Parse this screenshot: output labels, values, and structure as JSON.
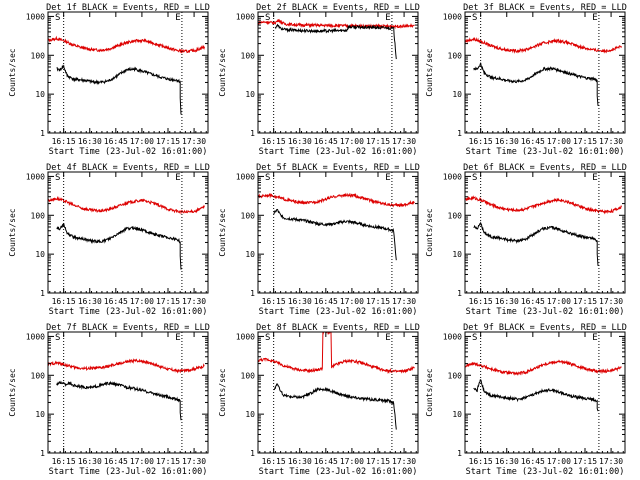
{
  "colors": {
    "events": "#000000",
    "lld": "#dd0000",
    "axis": "#000000",
    "background": "#ffffff"
  },
  "common": {
    "xlabel": "Start Time (23-Jul-02 16:01:00)",
    "ylabel": "Counts/sec",
    "xticks": [
      {
        "t": 14,
        "label": "16:15"
      },
      {
        "t": 29,
        "label": "16:30"
      },
      {
        "t": 44,
        "label": "16:45"
      },
      {
        "t": 59,
        "label": "17:00"
      },
      {
        "t": 74,
        "label": "17:15"
      },
      {
        "t": 89,
        "label": "17:30"
      }
    ],
    "yticks": [
      {
        "v": 1,
        "label": "1"
      },
      {
        "v": 10,
        "label": "10"
      },
      {
        "v": 100,
        "label": "100"
      },
      {
        "v": 1000,
        "label": "1000"
      }
    ],
    "xlim": [
      5,
      97
    ],
    "ylim": [
      1,
      1300
    ],
    "marker_start": "S",
    "marker_end": "E",
    "marker_times": [
      14,
      82
    ]
  },
  "chart_data": [
    {
      "type": "line",
      "title": "Det 1f BLACK = Events, RED = LLD",
      "xlabel": "Start Time (23-Jul-02 16:01:00)",
      "ylabel": "Counts/sec",
      "ylim": [
        1,
        1300
      ],
      "series": [
        {
          "name": "LLD",
          "color": "#dd0000",
          "x": [
            5,
            10,
            15,
            20,
            25,
            30,
            35,
            40,
            45,
            50,
            55,
            60,
            65,
            70,
            75,
            80,
            85,
            90,
            95
          ],
          "values": [
            240,
            270,
            230,
            180,
            155,
            140,
            135,
            145,
            175,
            210,
            235,
            240,
            210,
            175,
            150,
            130,
            125,
            135,
            165
          ]
        },
        {
          "name": "Events",
          "color": "#000000",
          "x": [
            10,
            12,
            13,
            14,
            16,
            20,
            25,
            30,
            35,
            40,
            45,
            50,
            55,
            60,
            65,
            70,
            75,
            79,
            81,
            81,
            81.5
          ],
          "values": [
            45,
            42,
            48,
            52,
            30,
            24,
            23,
            21,
            20,
            22,
            30,
            42,
            44,
            38,
            32,
            27,
            24,
            23,
            21,
            8,
            3
          ]
        }
      ]
    },
    {
      "type": "line",
      "title": "Det 2f BLACK = Events, RED = LLD",
      "xlabel": "Start Time (23-Jul-02 16:01:00)",
      "ylabel": "Counts/sec",
      "ylim": [
        1,
        1300
      ],
      "series": [
        {
          "name": "LLD",
          "color": "#dd0000",
          "x": [
            5,
            10,
            12,
            15,
            17,
            20,
            30,
            40,
            50,
            60,
            70,
            80,
            90,
            95
          ],
          "values": [
            700,
            720,
            690,
            700,
            800,
            640,
            600,
            590,
            580,
            570,
            560,
            560,
            560,
            580
          ]
        },
        {
          "name": "Events",
          "color": "#000000",
          "x": [
            15,
            16,
            18,
            20,
            30,
            40,
            50,
            56,
            57,
            60,
            70,
            80,
            83,
            84,
            84.5
          ],
          "values": [
            520,
            600,
            490,
            460,
            430,
            420,
            430,
            440,
            540,
            530,
            520,
            510,
            480,
            140,
            80
          ]
        }
      ]
    },
    {
      "type": "line",
      "title": "Det 3f BLACK = Events, RED = LLD",
      "xlabel": "Start Time (23-Jul-02 16:01:00)",
      "ylabel": "Counts/sec",
      "ylim": [
        1,
        1300
      ],
      "series": [
        {
          "name": "LLD",
          "color": "#dd0000",
          "x": [
            5,
            10,
            15,
            20,
            25,
            30,
            35,
            40,
            45,
            50,
            55,
            60,
            65,
            70,
            75,
            80,
            85,
            90,
            95
          ],
          "values": [
            230,
            260,
            220,
            175,
            150,
            135,
            130,
            140,
            170,
            205,
            230,
            235,
            205,
            170,
            150,
            135,
            130,
            140,
            170
          ]
        },
        {
          "name": "Events",
          "color": "#000000",
          "x": [
            10,
            12,
            13,
            14,
            16,
            20,
            25,
            30,
            35,
            40,
            45,
            50,
            55,
            60,
            65,
            70,
            75,
            79,
            81,
            81,
            81.5
          ],
          "values": [
            46,
            44,
            52,
            60,
            35,
            27,
            25,
            22,
            21,
            23,
            32,
            44,
            46,
            40,
            34,
            29,
            26,
            25,
            22,
            9,
            5
          ]
        }
      ]
    },
    {
      "type": "line",
      "title": "Det 4f BLACK = Events, RED = LLD",
      "xlabel": "Start Time (23-Jul-02 16:01:00)",
      "ylabel": "Counts/sec",
      "ylim": [
        1,
        1300
      ],
      "series": [
        {
          "name": "LLD",
          "color": "#dd0000",
          "x": [
            5,
            10,
            15,
            20,
            25,
            30,
            35,
            40,
            45,
            50,
            55,
            60,
            65,
            70,
            75,
            80,
            85,
            90,
            95
          ],
          "values": [
            240,
            270,
            230,
            180,
            150,
            135,
            130,
            140,
            170,
            205,
            230,
            240,
            210,
            170,
            140,
            125,
            120,
            130,
            165
          ]
        },
        {
          "name": "Events",
          "color": "#000000",
          "x": [
            10,
            12,
            13,
            14,
            16,
            20,
            25,
            30,
            35,
            40,
            45,
            50,
            55,
            60,
            65,
            70,
            75,
            79,
            81,
            81,
            81.5
          ],
          "values": [
            48,
            45,
            52,
            60,
            34,
            27,
            25,
            22,
            21,
            24,
            33,
            45,
            47,
            41,
            34,
            29,
            26,
            24,
            21,
            9,
            4
          ]
        }
      ]
    },
    {
      "type": "line",
      "title": "Det 5f BLACK = Events, RED = LLD",
      "xlabel": "Start Time (23-Jul-02 16:01:00)",
      "ylabel": "Counts/sec",
      "ylim": [
        1,
        1300
      ],
      "series": [
        {
          "name": "LLD",
          "color": "#dd0000",
          "x": [
            5,
            10,
            14,
            15,
            20,
            25,
            30,
            35,
            40,
            45,
            50,
            55,
            60,
            65,
            70,
            75,
            80,
            85,
            90,
            95
          ],
          "values": [
            300,
            330,
            320,
            300,
            260,
            230,
            210,
            210,
            230,
            270,
            310,
            330,
            320,
            280,
            240,
            210,
            190,
            180,
            190,
            220
          ]
        },
        {
          "name": "Events",
          "color": "#000000",
          "x": [
            14,
            16,
            18,
            20,
            25,
            30,
            35,
            40,
            45,
            50,
            55,
            60,
            65,
            70,
            75,
            80,
            83,
            84,
            84.5
          ],
          "values": [
            110,
            140,
            100,
            85,
            80,
            75,
            68,
            60,
            58,
            62,
            70,
            66,
            58,
            52,
            48,
            44,
            40,
            12,
            7
          ]
        }
      ]
    },
    {
      "type": "line",
      "title": "Det 6f BLACK = Events, RED = LLD",
      "xlabel": "Start Time (23-Jul-02 16:01:00)",
      "ylabel": "Counts/sec",
      "ylim": [
        1,
        1300
      ],
      "series": [
        {
          "name": "LLD",
          "color": "#dd0000",
          "x": [
            5,
            10,
            15,
            20,
            25,
            30,
            35,
            40,
            45,
            50,
            55,
            60,
            65,
            70,
            75,
            80,
            85,
            90,
            95
          ],
          "values": [
            250,
            280,
            240,
            185,
            155,
            140,
            135,
            145,
            175,
            210,
            240,
            250,
            215,
            175,
            145,
            130,
            125,
            130,
            165
          ]
        },
        {
          "name": "Events",
          "color": "#000000",
          "x": [
            10,
            12,
            13,
            14,
            16,
            20,
            25,
            30,
            35,
            40,
            45,
            50,
            55,
            60,
            65,
            70,
            75,
            79,
            81,
            81,
            81.5
          ],
          "values": [
            50,
            46,
            54,
            62,
            36,
            28,
            26,
            23,
            22,
            24,
            34,
            46,
            48,
            42,
            35,
            30,
            27,
            25,
            22,
            10,
            5
          ]
        }
      ]
    },
    {
      "type": "line",
      "title": "Det 7f BLACK = Events, RED = LLD",
      "xlabel": "Start Time (23-Jul-02 16:01:00)",
      "ylabel": "Counts/sec",
      "ylim": [
        1,
        1300
      ],
      "series": [
        {
          "name": "LLD",
          "color": "#dd0000",
          "x": [
            5,
            10,
            15,
            20,
            25,
            30,
            35,
            40,
            45,
            50,
            55,
            60,
            65,
            70,
            75,
            80,
            85,
            90,
            95
          ],
          "values": [
            190,
            210,
            185,
            160,
            150,
            150,
            155,
            170,
            195,
            220,
            240,
            230,
            200,
            165,
            140,
            130,
            135,
            150,
            175
          ]
        },
        {
          "name": "Events",
          "color": "#000000",
          "x": [
            10,
            13,
            15,
            17,
            20,
            25,
            30,
            35,
            40,
            45,
            50,
            55,
            60,
            65,
            70,
            75,
            79,
            81,
            81,
            81.5
          ],
          "values": [
            60,
            65,
            58,
            62,
            55,
            50,
            48,
            55,
            62,
            58,
            50,
            45,
            40,
            35,
            30,
            27,
            24,
            22,
            11,
            7
          ]
        }
      ]
    },
    {
      "type": "line",
      "title": "Det 8f BLACK = Events, RED = LLD",
      "xlabel": "Start Time (23-Jul-02 16:01:00)",
      "ylabel": "Counts/sec",
      "ylim": [
        1,
        1300
      ],
      "series": [
        {
          "name": "LLD",
          "color": "#dd0000",
          "x": [
            5,
            10,
            15,
            20,
            25,
            30,
            35,
            40,
            42,
            42.3,
            47,
            47.3,
            50,
            55,
            60,
            65,
            70,
            75,
            80,
            85,
            90,
            95
          ],
          "values": [
            240,
            260,
            220,
            175,
            150,
            135,
            130,
            140,
            150,
            1300,
            1300,
            160,
            190,
            230,
            235,
            205,
            170,
            145,
            130,
            125,
            130,
            160
          ]
        },
        {
          "name": "Events",
          "color": "#000000",
          "x": [
            14,
            16,
            18,
            20,
            25,
            30,
            35,
            40,
            45,
            50,
            55,
            60,
            65,
            70,
            75,
            80,
            83,
            84,
            84.5
          ],
          "values": [
            40,
            62,
            38,
            30,
            28,
            27,
            34,
            44,
            42,
            35,
            30,
            27,
            25,
            24,
            23,
            22,
            20,
            7,
            4
          ]
        }
      ]
    },
    {
      "type": "line",
      "title": "Det 9f BLACK = Events, RED = LLD",
      "xlabel": "Start Time (23-Jul-02 16:01:00)",
      "ylabel": "Counts/sec",
      "ylim": [
        1,
        1300
      ],
      "series": [
        {
          "name": "LLD",
          "color": "#dd0000",
          "x": [
            5,
            10,
            15,
            20,
            25,
            30,
            35,
            40,
            45,
            50,
            55,
            60,
            65,
            70,
            75,
            80,
            85,
            90,
            95
          ],
          "values": [
            170,
            200,
            175,
            145,
            125,
            115,
            110,
            120,
            150,
            190,
            215,
            225,
            200,
            170,
            145,
            130,
            125,
            135,
            160
          ]
        },
        {
          "name": "Events",
          "color": "#000000",
          "x": [
            10,
            12,
            13,
            14,
            16,
            20,
            25,
            30,
            35,
            40,
            45,
            50,
            55,
            60,
            65,
            70,
            75,
            79,
            81,
            81,
            81.5
          ],
          "values": [
            45,
            40,
            60,
            75,
            38,
            30,
            28,
            26,
            24,
            27,
            33,
            40,
            42,
            36,
            30,
            27,
            25,
            24,
            22,
            14,
            12
          ]
        }
      ]
    }
  ]
}
